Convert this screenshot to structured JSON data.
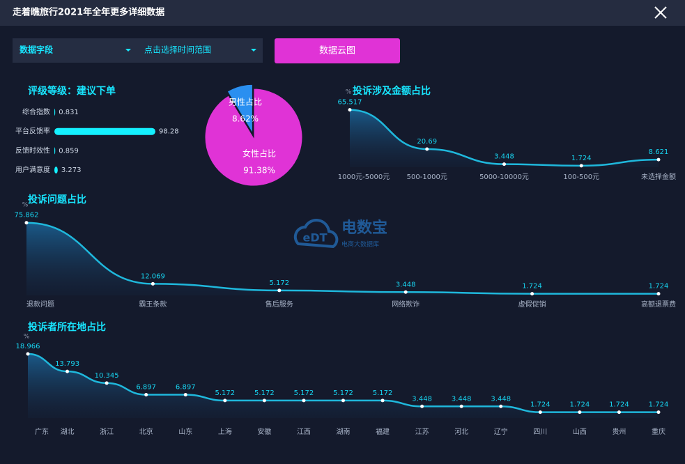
{
  "header": {
    "title": "走着瞧旅行2021年全年更多详细数据"
  },
  "controls": {
    "field_select": "数据字段",
    "time_select": "点击选择时间范围",
    "button": "数据云图"
  },
  "watermark": {
    "logo": "eDT",
    "brand": "电数宝",
    "subtitle": "电商大数据库"
  },
  "chart_data": [
    {
      "type": "hbar",
      "title": "评级等级：建议下单",
      "categories": [
        "综合指数",
        "平台反馈率",
        "反馈时效性",
        "用户满意度"
      ],
      "values": [
        0.831,
        98.28,
        0.859,
        3.273
      ],
      "color": "#14f0ff"
    },
    {
      "type": "pie",
      "categories": [
        "男性占比",
        "女性占比"
      ],
      "values": [
        8.62,
        91.38
      ],
      "value_labels": [
        "8.62%",
        "91.38%"
      ],
      "colors": [
        "#2a8ff0",
        "#e033d6"
      ]
    },
    {
      "type": "line",
      "title": "投诉涉及金额占比",
      "unit": "%",
      "categories": [
        "1000元-5000元",
        "500-1000元",
        "5000-10000元",
        "100-500元",
        "未选择金额"
      ],
      "values": [
        65.517,
        20.69,
        3.448,
        1.724,
        8.621
      ],
      "ylim": [
        0,
        70
      ],
      "color": "#1fb8dc"
    },
    {
      "type": "line",
      "title": "投诉问题占比",
      "unit": "%",
      "categories": [
        "退款问题",
        "霸王条款",
        "售后服务",
        "网络欺诈",
        "虚假促销",
        "高额退票费"
      ],
      "values": [
        75.862,
        12.069,
        5.172,
        3.448,
        1.724,
        1.724
      ],
      "ylim": [
        0,
        80
      ],
      "color": "#1fb8dc"
    },
    {
      "type": "line",
      "title": "投诉者所在地占比",
      "unit": "%",
      "categories": [
        "广东",
        "湖北",
        "浙江",
        "北京",
        "山东",
        "上海",
        "安徽",
        "江西",
        "湖南",
        "福建",
        "江苏",
        "河北",
        "辽宁",
        "四川",
        "山西",
        "贵州",
        "重庆"
      ],
      "values": [
        18.966,
        13.793,
        10.345,
        6.897,
        6.897,
        5.172,
        5.172,
        5.172,
        5.172,
        5.172,
        3.448,
        3.448,
        3.448,
        1.724,
        1.724,
        1.724,
        1.724
      ],
      "ylim": [
        0,
        20
      ],
      "color": "#1fb8dc"
    }
  ]
}
